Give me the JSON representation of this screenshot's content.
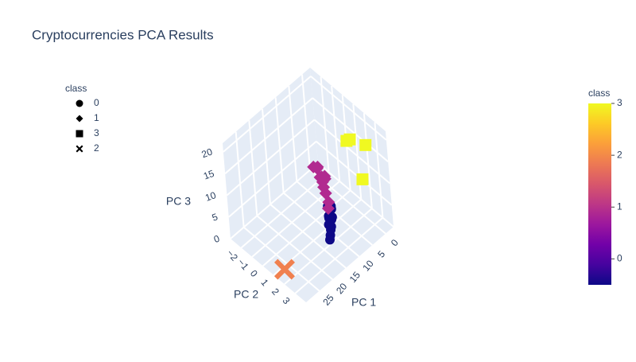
{
  "chart_data": {
    "type": "scatter3d",
    "title": "Cryptocurrencies PCA Results",
    "xlabel": "PC 1",
    "ylabel": "PC 2",
    "zlabel": "PC 3",
    "xlim": [
      -3,
      30
    ],
    "ylim": [
      -3,
      4
    ],
    "zlim": [
      0,
      22
    ],
    "xticks": [
      0,
      5,
      10,
      15,
      20,
      25
    ],
    "yticks": [
      {
        "value": -2,
        "label": "−2"
      },
      {
        "value": -1,
        "label": "−1"
      },
      0,
      1,
      2,
      3
    ],
    "zticks": [
      0,
      5,
      10,
      15,
      20
    ],
    "grid": true,
    "legend_title": "class",
    "legend_position": "upper left",
    "series": [
      {
        "name": "0",
        "symbol": "circle",
        "color": "#0d0887",
        "x": [
          5,
          6,
          7,
          8,
          9,
          10,
          11,
          6.5,
          8.5,
          7.5,
          9.5,
          12
        ],
        "y": [
          0.2,
          0.5,
          0.8,
          1.0,
          1.2,
          1.4,
          1.6,
          0.3,
          0.9,
          0.6,
          1.1,
          1.8
        ],
        "z": [
          1,
          1.5,
          0.8,
          1.2,
          0.5,
          0.7,
          0.4,
          2,
          1.6,
          0.9,
          1,
          0.3
        ]
      },
      {
        "name": "1",
        "symbol": "diamond",
        "color": "#b12a90",
        "x": [
          0.5,
          1,
          2,
          3,
          4,
          5,
          1.5,
          2.5,
          3.5,
          6,
          0,
          4.5
        ],
        "y": [
          -2.5,
          -2,
          -1.5,
          -1,
          -0.5,
          0,
          -1.8,
          -1.2,
          -0.8,
          0.2,
          -1.6,
          -0.3
        ],
        "z": [
          2,
          3,
          2.5,
          3,
          2,
          1.5,
          4,
          3.5,
          2.5,
          1,
          1.5,
          6
        ]
      },
      {
        "name": "3",
        "symbol": "square",
        "color": "#f0f921",
        "x": [
          2,
          1,
          3,
          1.5
        ],
        "y": [
          3.3,
          1.5,
          3,
          1.3
        ],
        "z": [
          20,
          17,
          12,
          16.5
        ]
      },
      {
        "name": "2",
        "symbol": "x",
        "color": "#f0804f",
        "x": [
          26.7
        ],
        "y": [
          1.2
        ],
        "z": [
          0
        ]
      }
    ],
    "colorbar_title": "class",
    "clim": [
      -0.5,
      3
    ],
    "colorbar_ticks": [
      0,
      1,
      2,
      3
    ],
    "colorscale": [
      "#0d0887",
      "#46039f",
      "#7201a8",
      "#9c179e",
      "#bd3786",
      "#d8576b",
      "#ed7953",
      "#fb9f3a",
      "#fdca26",
      "#f0f921"
    ]
  }
}
